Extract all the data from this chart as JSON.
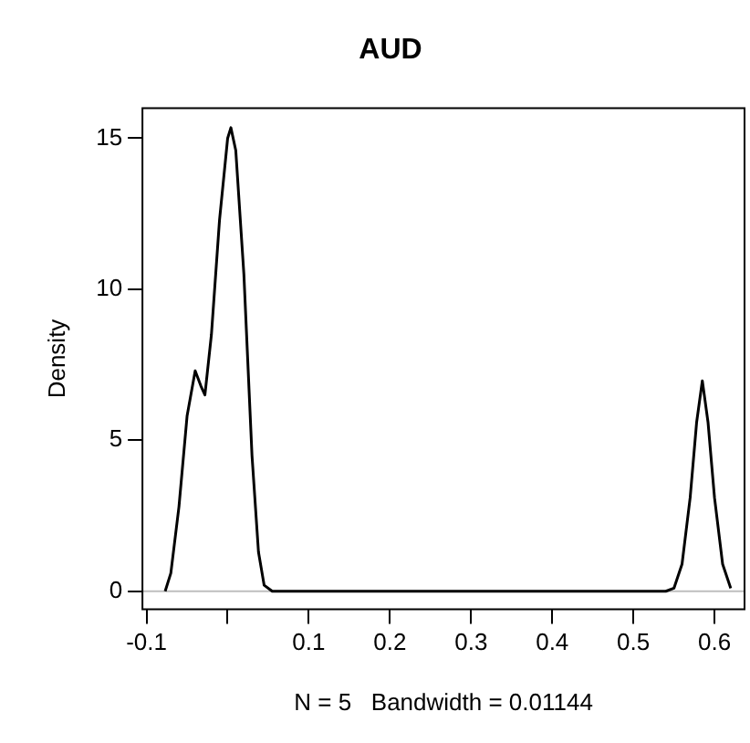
{
  "chart_data": {
    "type": "line",
    "title": "AUD",
    "xlabel": "N = 5   Bandwidth = 0.01144",
    "ylabel": "Density",
    "series": [
      {
        "color": "#000000",
        "x": [
          -0.077,
          -0.07,
          -0.06,
          -0.05,
          -0.04,
          -0.033,
          -0.028,
          -0.02,
          -0.01,
          0.0,
          0.004,
          0.01,
          0.02,
          0.03,
          0.038,
          0.045,
          0.055,
          0.1,
          0.2,
          0.3,
          0.4,
          0.5,
          0.54,
          0.55,
          0.56,
          0.57,
          0.578,
          0.585,
          0.592,
          0.6,
          0.61,
          0.62
        ],
        "values": [
          0,
          0.6,
          2.8,
          5.8,
          7.3,
          6.8,
          6.5,
          8.5,
          12.3,
          15.0,
          15.35,
          14.6,
          10.5,
          4.5,
          1.3,
          0.2,
          0,
          0,
          0,
          0,
          0,
          0,
          0,
          0.1,
          0.9,
          3.1,
          5.6,
          6.97,
          5.6,
          3.1,
          0.9,
          0.1
        ]
      }
    ],
    "xlim": [
      -0.105,
      0.637
    ],
    "xticks": [
      -0.1,
      {
        "value": 0,
        "label": null
      },
      0.1,
      0.2,
      0.3,
      0.4,
      0.5,
      0.6
    ],
    "ylim": [
      -0.6,
      16
    ],
    "yticks": [
      0,
      5,
      10,
      15
    ],
    "ref_lines": [
      {
        "axis": "y",
        "value": 0,
        "color": "#bebebe"
      }
    ],
    "grid": false,
    "legend": false,
    "marker": "none",
    "line_style": "solid"
  }
}
